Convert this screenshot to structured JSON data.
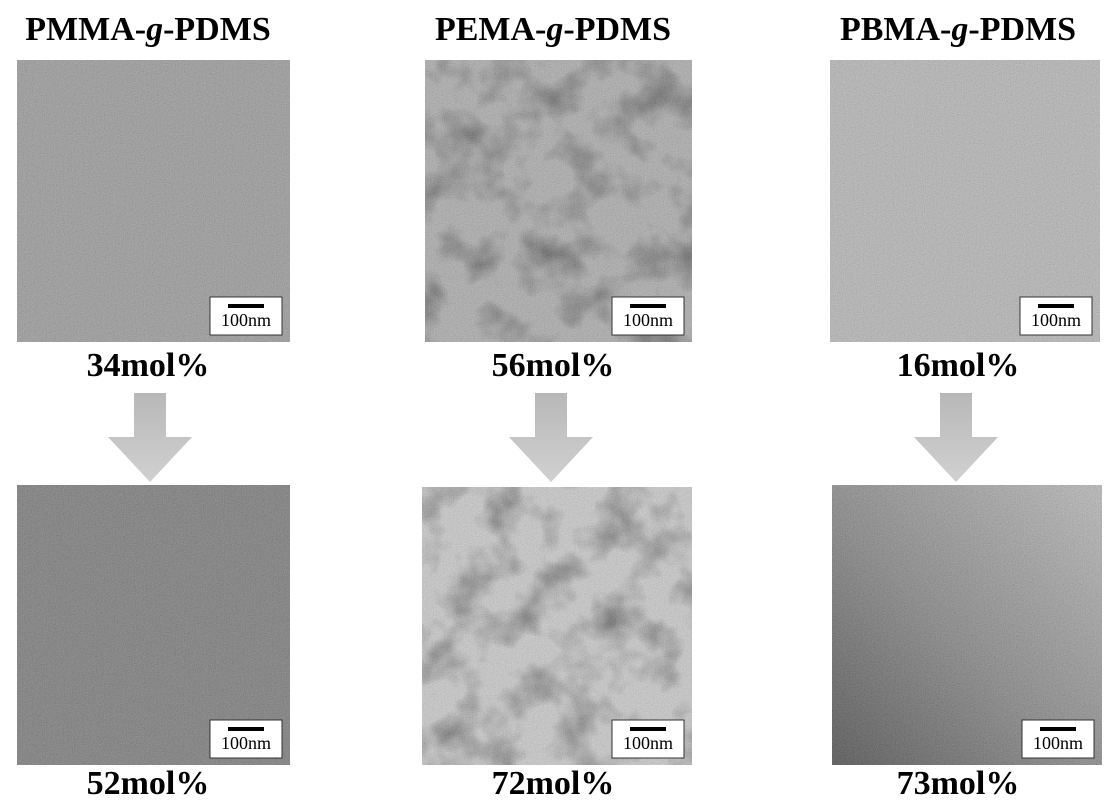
{
  "columns": [
    {
      "title": {
        "prefix": "PMMA-",
        "italic": "g",
        "suffix": "-PDMS"
      },
      "top": {
        "scale": "100nm",
        "label": "34mol%"
      },
      "bottom": {
        "scale": "100nm",
        "label": "52mol%"
      }
    },
    {
      "title": {
        "prefix": "PEMA-",
        "italic": "g",
        "suffix": "-PDMS"
      },
      "top": {
        "scale": "100nm",
        "label": "56mol%"
      },
      "bottom": {
        "scale": "100nm",
        "label": "72mol%"
      }
    },
    {
      "title": {
        "prefix": "PBMA-",
        "italic": "g",
        "suffix": "-PDMS"
      },
      "top": {
        "scale": "100nm",
        "label": "16mol%"
      },
      "bottom": {
        "scale": "100nm",
        "label": "73mol%"
      }
    }
  ]
}
